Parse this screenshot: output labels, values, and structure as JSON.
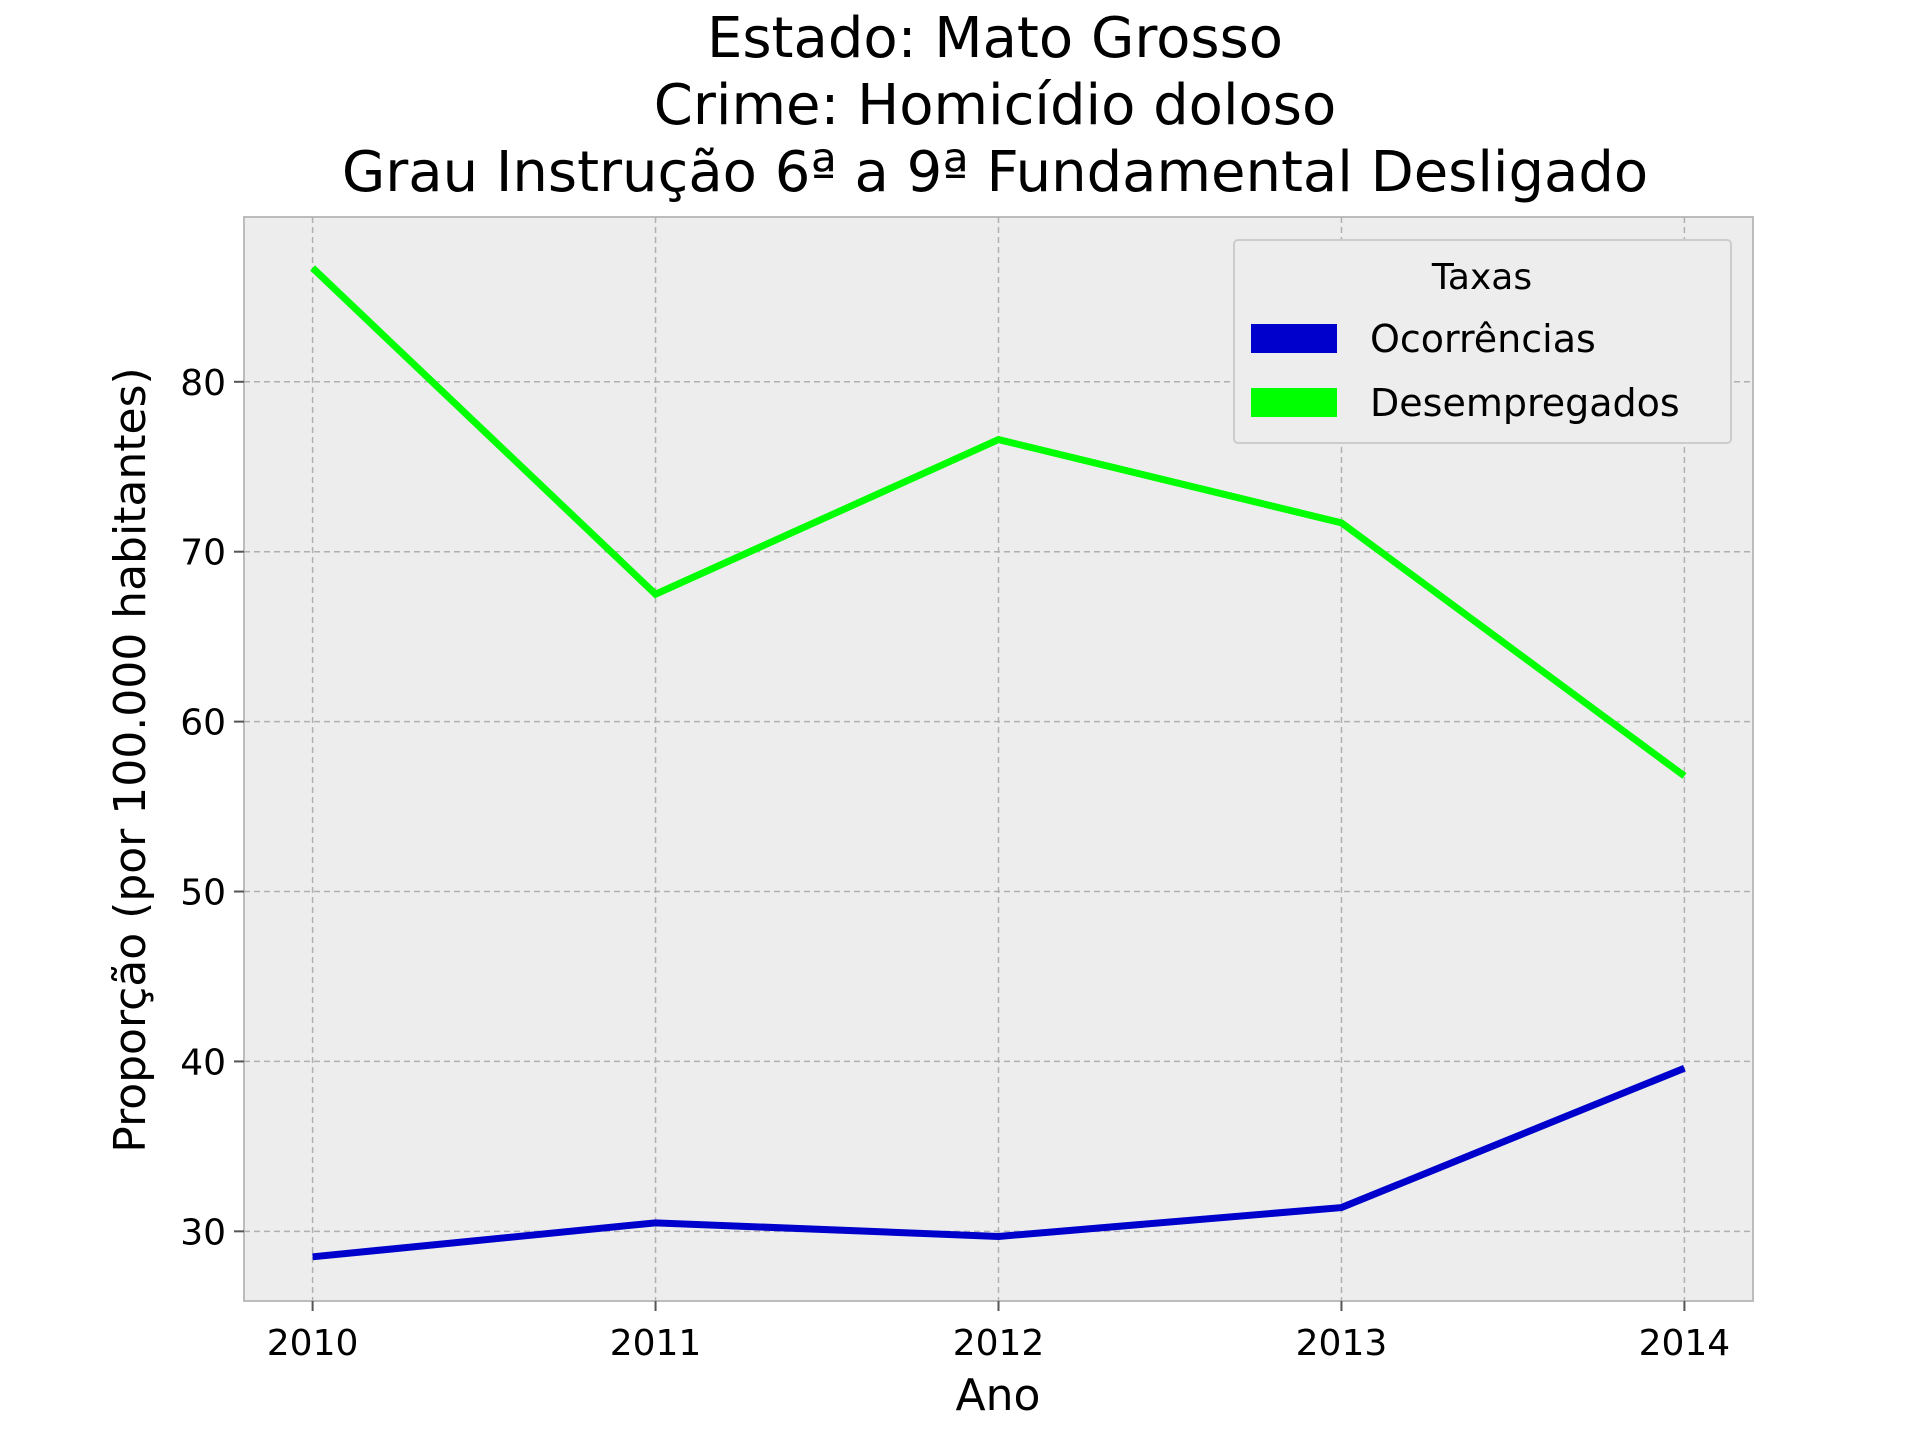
{
  "chart_data": {
    "type": "line",
    "title_lines": [
      "Estado: Mato Grosso",
      "Crime: Homicídio doloso",
      "Grau Instrução  6ª a 9ª Fundamental   Desligado"
    ],
    "xlabel": "Ano",
    "ylabel": "Proporção (por 100.000 habitantes)",
    "x": [
      2010,
      2011,
      2012,
      2013,
      2014
    ],
    "x_tick_labels": [
      "2010",
      "2011",
      "2012",
      "2013",
      "2014"
    ],
    "y_ticks": [
      30,
      40,
      50,
      60,
      70,
      80
    ],
    "y_tick_labels": [
      "30",
      "40",
      "50",
      "60",
      "70",
      "80"
    ],
    "xlim": [
      2009.8,
      2014.2
    ],
    "ylim": [
      25.9,
      89.7
    ],
    "grid": true,
    "legend": {
      "title": "Taxas",
      "placement": "top-right"
    },
    "series": [
      {
        "name": "Ocorrências",
        "color": "#0000cc",
        "values": [
          28.5,
          30.5,
          29.7,
          31.4,
          39.6
        ]
      },
      {
        "name": "Desempregados",
        "color": "#00ff00",
        "values": [
          86.7,
          67.5,
          76.6,
          71.7,
          56.8
        ]
      }
    ]
  }
}
